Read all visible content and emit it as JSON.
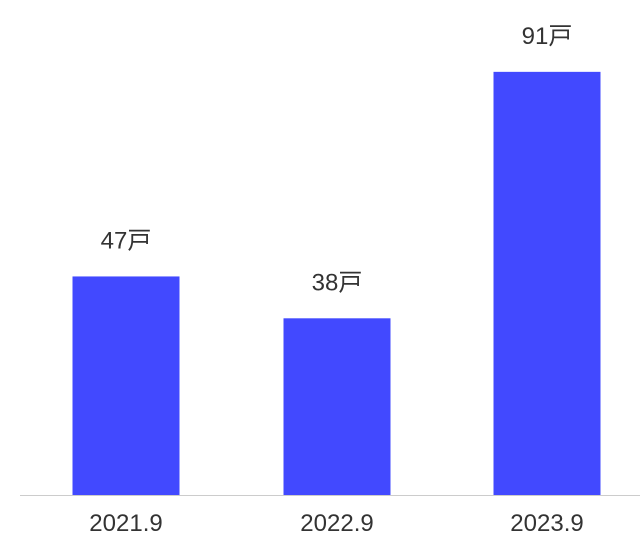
{
  "chart_data": {
    "type": "bar",
    "categories": [
      "2021.9",
      "2022.9",
      "2023.9"
    ],
    "values": [
      47,
      38,
      91
    ],
    "value_labels": [
      "47戸",
      "38戸",
      "91戸"
    ],
    "unit": "戸",
    "title": "",
    "xlabel": "",
    "ylabel": "",
    "ylim": [
      0,
      100
    ],
    "grid": false,
    "legend": "none",
    "bar_color": "#4249ff",
    "axis_color": "#cccccc",
    "text_color": "#333333"
  }
}
